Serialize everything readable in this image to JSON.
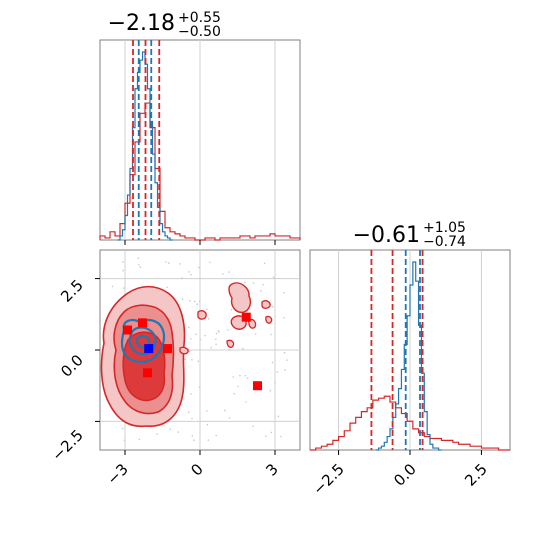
{
  "chart_data": [
    {
      "type": "histogram",
      "panel": "top-left",
      "title": {
        "value": "−2.18",
        "plus": "+0.55",
        "minus": "−0.50"
      },
      "xlim": [
        -4,
        4
      ],
      "grid": true,
      "series": [
        {
          "name": "",
          "color": "#d62728",
          "bins_x": [
            -4.0,
            -3.8,
            -3.6,
            -3.4,
            -3.2,
            -3.0,
            -2.8,
            -2.6,
            -2.4,
            -2.2,
            -2.0,
            -1.8,
            -1.6,
            -1.4,
            -1.2,
            -1.0,
            -0.8,
            -0.6,
            -0.4,
            -0.2,
            0.0,
            0.2,
            0.4,
            0.6,
            0.8,
            1.0,
            1.2,
            1.4,
            1.6,
            1.8,
            2.0,
            2.2,
            2.4,
            2.6,
            2.8,
            3.0,
            3.2,
            3.4,
            3.6,
            3.8
          ],
          "heights": [
            0.02,
            0.01,
            0.04,
            0.02,
            0.08,
            0.18,
            0.32,
            0.48,
            0.62,
            0.67,
            0.55,
            0.35,
            0.14,
            0.06,
            0.04,
            0.03,
            0.02,
            0.01,
            0.01,
            0.0,
            0.0,
            0.01,
            0.01,
            0.0,
            0.01,
            0.01,
            0.01,
            0.01,
            0.02,
            0.02,
            0.01,
            0.02,
            0.02,
            0.02,
            0.03,
            0.02,
            0.02,
            0.02,
            0.01,
            0.01
          ],
          "quantiles": [
            -2.68,
            -2.18,
            -1.63
          ]
        },
        {
          "name": "",
          "color": "#1f77b4",
          "bins_x": [
            -3.3,
            -3.2,
            -3.1,
            -3.0,
            -2.9,
            -2.8,
            -2.7,
            -2.6,
            -2.5,
            -2.4,
            -2.3,
            -2.2,
            -2.1,
            -2.0,
            -1.9,
            -1.8,
            -1.7,
            -1.6,
            -1.5,
            -1.4,
            -1.3,
            -1.2
          ],
          "heights": [
            0.0,
            0.02,
            0.05,
            0.12,
            0.22,
            0.35,
            0.55,
            0.74,
            0.82,
            0.88,
            0.92,
            0.86,
            0.74,
            0.58,
            0.42,
            0.28,
            0.16,
            0.08,
            0.04,
            0.02,
            0.01,
            0.0
          ],
          "quantiles": [
            -2.45,
            -1.95
          ]
        }
      ]
    },
    {
      "type": "contour",
      "panel": "bottom-left",
      "xlim": [
        -4,
        4
      ],
      "ylim": [
        -3.5,
        3.5
      ],
      "xticks": [
        "−3",
        "0",
        "3"
      ],
      "yticks": [
        "2.5",
        "0.0",
        "−2.5"
      ],
      "grid": true,
      "series": [
        {
          "name": "",
          "color": "#d62728",
          "levels": 3
        },
        {
          "name": "",
          "color": "#1f77b4",
          "levels": 3
        }
      ],
      "markers_red": [
        [
          -2.9,
          0.7
        ],
        [
          -2.3,
          0.95
        ],
        [
          -1.3,
          0.05
        ],
        [
          -2.1,
          -0.8
        ],
        [
          1.85,
          1.15
        ],
        [
          2.3,
          -1.25
        ]
      ],
      "marker_blue": [
        -2.05,
        0.05
      ]
    },
    {
      "type": "histogram",
      "panel": "bottom-right",
      "title": {
        "value": "−0.61",
        "plus": "+1.05",
        "minus": "−0.74"
      },
      "xlim": [
        -3.5,
        3.5
      ],
      "xticks": [
        "−2.5",
        "0.0",
        "2.5"
      ],
      "grid": true,
      "series": [
        {
          "name": "",
          "color": "#d62728",
          "bins_x": [
            -3.5,
            -3.3,
            -3.1,
            -2.9,
            -2.7,
            -2.5,
            -2.3,
            -2.1,
            -1.9,
            -1.7,
            -1.5,
            -1.3,
            -1.1,
            -0.9,
            -0.7,
            -0.5,
            -0.3,
            -0.1,
            0.1,
            0.3,
            0.5,
            0.7,
            0.9,
            1.1,
            1.3,
            1.5,
            1.7,
            1.9,
            2.1,
            2.3,
            2.5,
            2.7,
            2.9,
            3.1,
            3.3
          ],
          "heights": [
            0.0,
            0.01,
            0.02,
            0.03,
            0.05,
            0.07,
            0.1,
            0.14,
            0.17,
            0.2,
            0.22,
            0.26,
            0.27,
            0.28,
            0.25,
            0.22,
            0.19,
            0.15,
            0.11,
            0.09,
            0.07,
            0.06,
            0.06,
            0.05,
            0.05,
            0.04,
            0.03,
            0.03,
            0.02,
            0.02,
            0.01,
            0.01,
            0.01,
            0.0,
            0.0
          ],
          "quantiles": [
            -1.35,
            -0.61,
            0.44
          ]
        },
        {
          "name": "",
          "color": "#1f77b4",
          "bins_x": [
            -1.2,
            -1.1,
            -1.0,
            -0.9,
            -0.8,
            -0.7,
            -0.6,
            -0.5,
            -0.4,
            -0.3,
            -0.2,
            -0.1,
            0.0,
            0.1,
            0.2,
            0.3,
            0.4,
            0.5,
            0.6,
            0.7,
            0.8,
            0.9,
            1.0
          ],
          "heights": [
            0.0,
            0.01,
            0.02,
            0.04,
            0.07,
            0.11,
            0.17,
            0.24,
            0.32,
            0.42,
            0.55,
            0.7,
            0.86,
            0.98,
            0.88,
            0.65,
            0.4,
            0.2,
            0.08,
            0.03,
            0.01,
            0.01,
            0.0
          ],
          "quantiles": [
            -0.15,
            0.35
          ]
        }
      ]
    }
  ]
}
